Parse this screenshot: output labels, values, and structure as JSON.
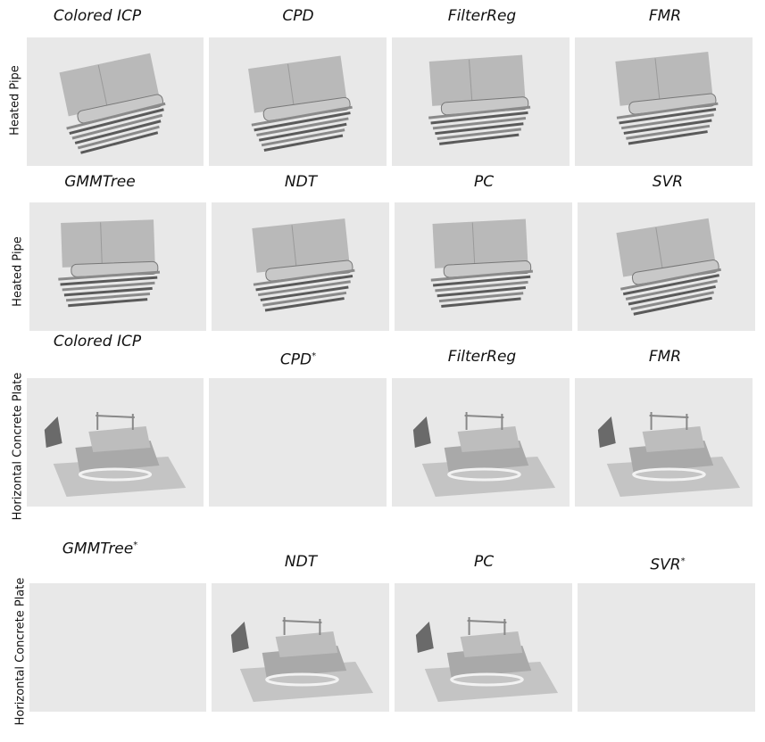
{
  "rows": [
    {
      "label": "Heated Pipe",
      "cells": [
        {
          "title": "Colored ICP",
          "star": false,
          "scene": "pipe",
          "empty": false
        },
        {
          "title": "CPD",
          "star": false,
          "scene": "pipe",
          "empty": false
        },
        {
          "title": "FilterReg",
          "star": false,
          "scene": "pipe",
          "empty": false
        },
        {
          "title": "FMR",
          "star": false,
          "scene": "pipe",
          "empty": false
        }
      ]
    },
    {
      "label": "Heated Pipe",
      "cells": [
        {
          "title": "GMMTree",
          "star": false,
          "scene": "pipe",
          "empty": false
        },
        {
          "title": "NDT",
          "star": false,
          "scene": "pipe",
          "empty": false
        },
        {
          "title": "PC",
          "star": false,
          "scene": "pipe",
          "empty": false
        },
        {
          "title": "SVR",
          "star": false,
          "scene": "pipe",
          "empty": false
        }
      ]
    },
    {
      "label": "Horizontal Concrete Plate",
      "cells": [
        {
          "title": "Colored ICP",
          "star": false,
          "scene": "plate",
          "empty": false
        },
        {
          "title": "CPD",
          "star": true,
          "scene": "plate",
          "empty": true
        },
        {
          "title": "FilterReg",
          "star": false,
          "scene": "plate",
          "empty": false
        },
        {
          "title": "FMR",
          "star": false,
          "scene": "plate",
          "empty": false
        }
      ]
    },
    {
      "label": "Horizontal Concrete Plate",
      "cells": [
        {
          "title": "GMMTree",
          "star": true,
          "scene": "plate",
          "empty": true
        },
        {
          "title": "NDT",
          "star": false,
          "scene": "plate",
          "empty": false
        },
        {
          "title": "PC",
          "star": false,
          "scene": "plate",
          "empty": false
        },
        {
          "title": "SVR",
          "star": true,
          "scene": "plate",
          "empty": true
        }
      ]
    }
  ],
  "star_symbol": "*",
  "colors": {
    "panel_bg": "#e8e8e8",
    "cloud_light": "#b8b8b8",
    "cloud_dark": "#505050"
  }
}
